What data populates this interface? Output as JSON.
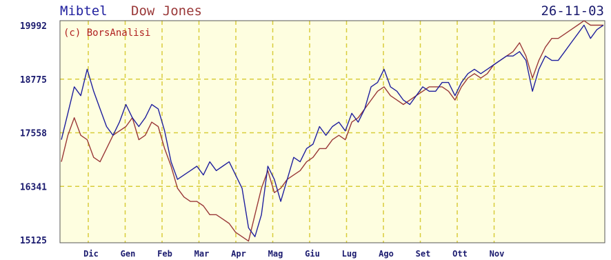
{
  "chart_data": {
    "type": "line",
    "title": "",
    "date": "26-11-03",
    "copyright": "(c) BorsAnalisi",
    "xlabel": "",
    "ylabel": "",
    "x_ticks": [
      "Dic",
      "Gen",
      "Feb",
      "Mar",
      "Apr",
      "Mag",
      "Giu",
      "Lug",
      "Ago",
      "Set",
      "Ott",
      "Nov"
    ],
    "y_ticks": [
      15125,
      16341,
      17558,
      18775,
      19992
    ],
    "ylim": [
      15125,
      20200
    ],
    "grid": true,
    "legend_placement": "top-left",
    "colors": {
      "background": "#fefee0",
      "grid": "#d8cc3a",
      "axis_text": "#1a1a6e",
      "mibtel": "#1f1f9e",
      "dowjones": "#9a3838"
    },
    "series": [
      {
        "name": "Mibtel",
        "color": "#1f1f9e",
        "values": [
          17400,
          18000,
          18600,
          18400,
          19000,
          18500,
          18100,
          17700,
          17500,
          17800,
          18200,
          17900,
          17700,
          17900,
          18200,
          18100,
          17600,
          16900,
          16500,
          16600,
          16700,
          16800,
          16600,
          16900,
          16700,
          16800,
          16900,
          16600,
          16300,
          15400,
          15200,
          15700,
          16800,
          16500,
          16000,
          16500,
          17000,
          16900,
          17200,
          17300,
          17700,
          17500,
          17700,
          17800,
          17600,
          18000,
          17800,
          18100,
          18600,
          18700,
          19000,
          18600,
          18500,
          18300,
          18200,
          18400,
          18600,
          18500,
          18500,
          18700,
          18700,
          18400,
          18700,
          18900,
          19000,
          18900,
          19000,
          19100,
          19200,
          19300,
          19300,
          19400,
          19200,
          18500,
          19000,
          19300,
          19200,
          19200,
          19400,
          19600,
          19800,
          20000,
          19700,
          19900,
          20000
        ]
      },
      {
        "name": "Dow Jones",
        "color": "#9a3838",
        "values": [
          16900,
          17500,
          17900,
          17500,
          17400,
          17000,
          16900,
          17200,
          17500,
          17600,
          17700,
          17900,
          17400,
          17500,
          17800,
          17700,
          17200,
          16800,
          16300,
          16100,
          16000,
          16000,
          15900,
          15700,
          15700,
          15600,
          15500,
          15300,
          15200,
          15100,
          15700,
          16300,
          16700,
          16200,
          16300,
          16500,
          16600,
          16700,
          16900,
          17000,
          17200,
          17200,
          17400,
          17500,
          17400,
          17800,
          17900,
          18100,
          18300,
          18500,
          18600,
          18400,
          18300,
          18200,
          18300,
          18400,
          18500,
          18600,
          18600,
          18600,
          18500,
          18300,
          18600,
          18800,
          18900,
          18800,
          18900,
          19100,
          19200,
          19300,
          19400,
          19600,
          19300,
          18800,
          19200,
          19500,
          19700,
          19700,
          19800,
          19900,
          20000,
          20100,
          20000,
          20000,
          20000
        ]
      }
    ]
  }
}
